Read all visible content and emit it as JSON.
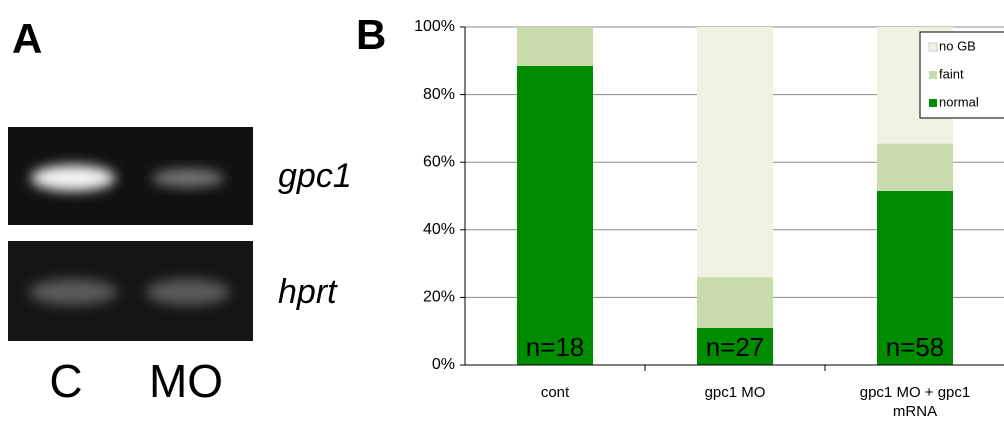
{
  "panel_a": {
    "label": "A",
    "genes": [
      "gpc1",
      "hprt"
    ],
    "lanes": [
      "C",
      "MO"
    ]
  },
  "chart_data": {
    "type": "stacked_bar",
    "panel_label": "B",
    "categories": [
      "cont",
      "gpc1 MO",
      "gpc1 MO + gpc1 mRNA"
    ],
    "series": [
      {
        "name": "normal",
        "color": "#008c00",
        "values": [
          88.5,
          11,
          51.5
        ]
      },
      {
        "name": "faint",
        "color": "#c9dbad",
        "values": [
          11.5,
          15,
          14
        ]
      },
      {
        "name": "no GB",
        "color": "#eef2e3",
        "values": [
          0,
          74,
          34.5
        ]
      }
    ],
    "annotations": [
      "n=18",
      "n=27",
      "n=58"
    ],
    "ylim": [
      0,
      100
    ],
    "yticks": [
      {
        "value": 0,
        "label": "0%"
      },
      {
        "value": 20,
        "label": "20%"
      },
      {
        "value": 40,
        "label": "40%"
      },
      {
        "value": 60,
        "label": "60%"
      },
      {
        "value": 80,
        "label": "80%"
      },
      {
        "value": 100,
        "label": "100%"
      }
    ],
    "grid": true,
    "legend": "top-right"
  }
}
